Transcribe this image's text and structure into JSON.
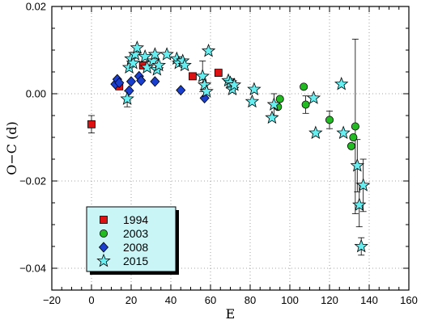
{
  "chart_data": {
    "type": "scatter",
    "title": "",
    "xlabel": "E",
    "ylabel": "O−C (d)",
    "xlim": [
      -20,
      160
    ],
    "ylim": [
      -0.045,
      0.02
    ],
    "xticks": [
      -20,
      0,
      20,
      40,
      60,
      80,
      100,
      120,
      140,
      160
    ],
    "xtick_labels": [
      "−20",
      "0",
      "20",
      "40",
      "60",
      "80",
      "100",
      "120",
      "140",
      "160"
    ],
    "yticks": [
      -0.04,
      -0.02,
      0.0,
      0.02
    ],
    "ytick_labels": [
      "−0.04",
      "−0.02",
      "0.00",
      "0.02"
    ],
    "grid": true,
    "legend_position": "bottom-left",
    "series": [
      {
        "name": "1994",
        "marker": "square",
        "color": "#dd1111",
        "points": [
          {
            "x": 0,
            "y": -0.007,
            "err": 0.002
          },
          {
            "x": 14,
            "y": 0.0017
          },
          {
            "x": 26,
            "y": 0.0065
          },
          {
            "x": 51,
            "y": 0.004
          },
          {
            "x": 64,
            "y": 0.0048
          }
        ]
      },
      {
        "name": "2003",
        "marker": "circle",
        "color": "#22bb22",
        "points": [
          {
            "x": 94,
            "y": -0.003
          },
          {
            "x": 95,
            "y": -0.0012
          },
          {
            "x": 107,
            "y": 0.0016
          },
          {
            "x": 108,
            "y": -0.0025,
            "err": 0.002
          },
          {
            "x": 120,
            "y": -0.006,
            "err": 0.002
          },
          {
            "x": 131,
            "y": -0.012
          },
          {
            "x": 132,
            "y": -0.01
          },
          {
            "x": 133,
            "y": -0.0075,
            "err": 0.02
          }
        ]
      },
      {
        "name": "2008",
        "marker": "diamond",
        "color": "#1a3fcf",
        "points": [
          {
            "x": 12,
            "y": 0.0022
          },
          {
            "x": 13,
            "y": 0.0033
          },
          {
            "x": 14,
            "y": 0.0025
          },
          {
            "x": 19,
            "y": 0.0007
          },
          {
            "x": 20,
            "y": 0.0028
          },
          {
            "x": 24,
            "y": 0.004
          },
          {
            "x": 25,
            "y": 0.003
          },
          {
            "x": 32,
            "y": 0.0028
          },
          {
            "x": 45,
            "y": 0.0008
          },
          {
            "x": 57,
            "y": -0.001
          }
        ]
      },
      {
        "name": "2015",
        "marker": "star",
        "color": "#66eef0",
        "points": [
          {
            "x": 18,
            "y": -0.0012,
            "err": 0.0018
          },
          {
            "x": 19,
            "y": 0.006
          },
          {
            "x": 20,
            "y": 0.008
          },
          {
            "x": 21,
            "y": 0.007
          },
          {
            "x": 22,
            "y": 0.009
          },
          {
            "x": 23,
            "y": 0.0105
          },
          {
            "x": 27,
            "y": 0.0085
          },
          {
            "x": 28,
            "y": 0.006
          },
          {
            "x": 31,
            "y": 0.0075
          },
          {
            "x": 32,
            "y": 0.009
          },
          {
            "x": 33,
            "y": 0.0055
          },
          {
            "x": 34,
            "y": 0.0065
          },
          {
            "x": 38,
            "y": 0.009
          },
          {
            "x": 43,
            "y": 0.008
          },
          {
            "x": 44,
            "y": 0.007
          },
          {
            "x": 46,
            "y": 0.0075
          },
          {
            "x": 47,
            "y": 0.0065
          },
          {
            "x": 56,
            "y": 0.004,
            "err": 0.0035
          },
          {
            "x": 57,
            "y": 0.002
          },
          {
            "x": 58,
            "y": 0.0005
          },
          {
            "x": 59,
            "y": 0.0098
          },
          {
            "x": 69,
            "y": 0.003
          },
          {
            "x": 70,
            "y": 0.0025
          },
          {
            "x": 71,
            "y": 0.001
          },
          {
            "x": 72,
            "y": 0.002
          },
          {
            "x": 81,
            "y": -0.0018
          },
          {
            "x": 82,
            "y": 0.001
          },
          {
            "x": 91,
            "y": -0.0055
          },
          {
            "x": 92,
            "y": -0.0025,
            "err": 0.0025
          },
          {
            "x": 112,
            "y": -0.001
          },
          {
            "x": 113,
            "y": -0.009
          },
          {
            "x": 126,
            "y": 0.0022
          },
          {
            "x": 127,
            "y": -0.009
          },
          {
            "x": 134,
            "y": -0.0165,
            "err": 0.006
          },
          {
            "x": 135,
            "y": -0.0255,
            "err": 0.005
          },
          {
            "x": 136,
            "y": -0.035,
            "err": 0.002
          },
          {
            "x": 137,
            "y": -0.021,
            "err": 0.006
          }
        ]
      }
    ]
  }
}
